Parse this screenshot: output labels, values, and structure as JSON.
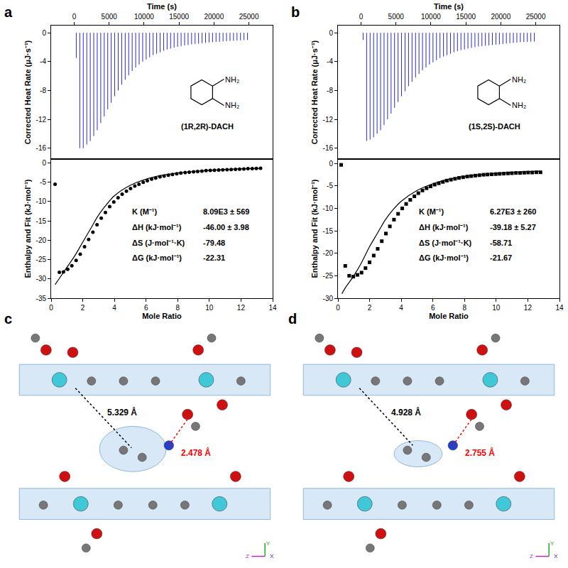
{
  "chart_data": [
    {
      "type": "impulse",
      "panel": "a",
      "x_label": "Time (s)",
      "y_label": "Corrected Heat Rate (μJ·s⁻¹)",
      "color": "#2a2ad4",
      "x": [
        300,
        800,
        1300,
        1800,
        2300,
        2800,
        3300,
        3800,
        4300,
        4800,
        5300,
        5800,
        6300,
        6800,
        7300,
        7800,
        8300,
        8800,
        9300,
        9800,
        10300,
        10800,
        11300,
        11800,
        12300,
        12800,
        13300,
        13800,
        14300,
        14800,
        15300,
        15800,
        16300,
        16800,
        17300,
        17800,
        18300,
        18800,
        19300,
        19800,
        20300,
        20800,
        21300,
        21800,
        22300,
        22800,
        23300,
        23800,
        24300,
        24800
      ],
      "values": [
        -3.5,
        -16,
        -16,
        -15.5,
        -15,
        -14.3,
        -13.5,
        -12.5,
        -11.6,
        -10.6,
        -9.7,
        -8.8,
        -8,
        -7.2,
        -6.5,
        -5.9,
        -5.3,
        -4.8,
        -4.4,
        -4,
        -3.7,
        -3.4,
        -3.1,
        -2.9,
        -2.7,
        -2.5,
        -2.3,
        -2.2,
        -2.05,
        -1.95,
        -1.85,
        -1.75,
        -1.7,
        -1.6,
        -1.55,
        -1.5,
        -1.45,
        -1.4,
        -1.35,
        -1.3,
        -1.27,
        -1.24,
        -1.2,
        -1.17,
        -1.14,
        -1.11,
        -1.08,
        -1.05,
        -1.02,
        -1.0
      ],
      "xlim": [
        -3300,
        28400
      ],
      "xticks": [
        0,
        5000,
        10000,
        15000,
        20000,
        25000
      ],
      "ylim": [
        -17.5,
        1
      ],
      "yticks": [
        -16,
        -12,
        -8,
        -4,
        0
      ],
      "annotations": [
        "(1R,2R)-DACH",
        "NH₂",
        "NH₂"
      ]
    },
    {
      "type": "scatter",
      "x_label": "Mole Ratio",
      "y_label": "Enthalpy and Fit (kJ·mol⁻¹)",
      "xlim": [
        0,
        14
      ],
      "xticks": [
        0,
        2,
        4,
        6,
        8,
        10,
        12,
        14
      ],
      "ylim": [
        -35,
        1
      ],
      "yticks": [
        -35,
        -30,
        -25,
        -20,
        -15,
        -10,
        -5,
        0
      ],
      "series": [
        {
          "type": "scatter",
          "marker": "circle",
          "color": "#000000",
          "x": [
            0.25,
            0.52,
            0.78,
            1.05,
            1.31,
            1.58,
            1.84,
            2.11,
            2.37,
            2.64,
            2.9,
            3.17,
            3.43,
            3.7,
            3.96,
            4.23,
            4.49,
            4.76,
            5.02,
            5.29,
            5.55,
            5.82,
            6.08,
            6.35,
            6.61,
            6.88,
            7.14,
            7.41,
            7.67,
            7.94,
            8.2,
            8.47,
            8.73,
            9.0,
            9.26,
            9.53,
            9.79,
            10.06,
            10.32,
            10.59,
            10.85,
            11.12,
            11.38,
            11.65,
            11.91,
            12.18,
            12.44,
            12.71,
            12.97,
            13.24
          ],
          "values": [
            -5.5,
            -28.3,
            -28.2,
            -27.5,
            -26.6,
            -25.2,
            -23.6,
            -21.7,
            -19.8,
            -17.9,
            -16,
            -14.3,
            -12.8,
            -11.3,
            -10.1,
            -9,
            -8.1,
            -7.3,
            -6.6,
            -6,
            -5.5,
            -5,
            -4.6,
            -4.2,
            -3.9,
            -3.6,
            -3.4,
            -3.2,
            -3,
            -2.8,
            -2.65,
            -2.5,
            -2.4,
            -2.3,
            -2.2,
            -2.1,
            -2.0,
            -1.95,
            -1.9,
            -1.85,
            -1.8,
            -1.75,
            -1.7,
            -1.65,
            -1.6,
            -1.55,
            -1.5,
            -1.5,
            -1.45,
            -1.4
          ]
        },
        {
          "type": "line",
          "color": "#000000",
          "x": [
            0.25,
            0.5,
            1,
            1.5,
            2,
            2.5,
            3,
            3.5,
            4,
            5,
            6,
            7,
            8,
            9,
            10,
            11,
            12,
            13.3
          ],
          "values": [
            -31.5,
            -30,
            -27,
            -24,
            -20.5,
            -17,
            -13.5,
            -10.8,
            -8.5,
            -5.8,
            -4.2,
            -3.2,
            -2.6,
            -2.2,
            -1.9,
            -1.7,
            -1.5,
            -1.4
          ]
        }
      ],
      "results": [
        {
          "label": "K (M⁻¹)",
          "value": "8.09E3 ± 569"
        },
        {
          "label": "ΔH (kJ·mol⁻¹)",
          "value": "-46.00 ± 3.98"
        },
        {
          "label": "ΔS (J·mol⁻¹·K)",
          "value": "-79.48"
        },
        {
          "label": "ΔG (kJ·mol⁻¹)",
          "value": "-22.31"
        }
      ]
    },
    {
      "type": "impulse",
      "panel": "b",
      "x_label": "Time (s)",
      "y_label": "Corrected Heat Rate (μJ·s⁻¹)",
      "color": "#2a2ad4",
      "x": [
        300,
        800,
        1300,
        1800,
        2300,
        2800,
        3300,
        3800,
        4300,
        4800,
        5300,
        5800,
        6300,
        6800,
        7300,
        7800,
        8300,
        8800,
        9300,
        9800,
        10300,
        10800,
        11300,
        11800,
        12300,
        12800,
        13300,
        13800,
        14300,
        14800,
        15300,
        15800,
        16300,
        16800,
        17300,
        17800,
        18300,
        18800,
        19300,
        19800,
        20300,
        20800,
        21300,
        21800,
        22300,
        22800,
        23300,
        23800,
        24300,
        24800
      ],
      "values": [
        -1,
        -15,
        -14.8,
        -14.5,
        -14,
        -13.5,
        -12.8,
        -12,
        -11.2,
        -10.4,
        -9.6,
        -8.8,
        -8.1,
        -7.4,
        -6.8,
        -6.2,
        -5.7,
        -5.2,
        -4.8,
        -4.4,
        -4.1,
        -3.8,
        -3.5,
        -3.3,
        -3.1,
        -2.9,
        -2.7,
        -2.55,
        -2.4,
        -2.3,
        -2.2,
        -2.1,
        -2.0,
        -1.9,
        -1.85,
        -1.8,
        -1.75,
        -1.7,
        -1.65,
        -1.6,
        -1.55,
        -1.5,
        -1.45,
        -1.4,
        -1.35,
        -1.3,
        -1.28,
        -1.26,
        -1.24,
        -1.22
      ],
      "xlim": [
        -3300,
        28400
      ],
      "xticks": [
        0,
        5000,
        10000,
        15000,
        20000,
        25000
      ],
      "ylim": [
        -17.5,
        1
      ],
      "yticks": [
        -16,
        -12,
        -8,
        -4,
        0
      ],
      "annotations": [
        "(1S,2S)-DACH",
        "NH₂",
        "NH₂"
      ]
    },
    {
      "type": "scatter",
      "x_label": "Mole Ratio",
      "y_label": "Enthalpy and Fit (kJ·mol⁻¹)",
      "xlim": [
        0,
        14
      ],
      "xticks": [
        0,
        2,
        4,
        6,
        8,
        10,
        12,
        14
      ],
      "ylim": [
        -30,
        1
      ],
      "yticks": [
        -30,
        -25,
        -20,
        -15,
        -10,
        -5,
        0
      ],
      "series": [
        {
          "type": "scatter",
          "marker": "square",
          "color": "#000000",
          "x": [
            0.2,
            0.46,
            0.71,
            0.97,
            1.23,
            1.49,
            1.74,
            2.0,
            2.26,
            2.51,
            2.77,
            3.03,
            3.28,
            3.54,
            3.8,
            4.06,
            4.31,
            4.57,
            4.83,
            5.08,
            5.34,
            5.6,
            5.85,
            6.11,
            6.37,
            6.63,
            6.88,
            7.14,
            7.4,
            7.65,
            7.91,
            8.17,
            8.42,
            8.68,
            8.94,
            9.2,
            9.45,
            9.71,
            9.97,
            10.22,
            10.48,
            10.74,
            10.99,
            11.25,
            11.51,
            11.77,
            12.02,
            12.28,
            12.54,
            12.8
          ],
          "values": [
            -0.3,
            -22.8,
            -25,
            -25.2,
            -24.8,
            -24.3,
            -23.3,
            -22,
            -20.5,
            -19,
            -17.3,
            -15.6,
            -14,
            -12.5,
            -11.2,
            -10,
            -9,
            -8.1,
            -7.3,
            -6.6,
            -6,
            -5.5,
            -5.1,
            -4.7,
            -4.4,
            -4.1,
            -3.8,
            -3.6,
            -3.4,
            -3.2,
            -3.05,
            -2.9,
            -2.8,
            -2.7,
            -2.6,
            -2.5,
            -2.45,
            -2.4,
            -2.35,
            -2.3,
            -2.25,
            -2.2,
            -2.15,
            -2.1,
            -2.1,
            -2.05,
            -2.0,
            -2.0,
            -1.95,
            -1.95
          ]
        },
        {
          "type": "line",
          "color": "#000000",
          "x": [
            0.25,
            0.5,
            1,
            1.5,
            2,
            2.5,
            3,
            3.5,
            4,
            5,
            6,
            7,
            8,
            9,
            10,
            11,
            12,
            12.8
          ],
          "values": [
            -29,
            -27.5,
            -25,
            -22,
            -18.5,
            -15.5,
            -12.5,
            -10.2,
            -8.4,
            -6,
            -4.5,
            -3.5,
            -2.9,
            -2.5,
            -2.2,
            -2,
            -1.8,
            -1.7
          ]
        }
      ],
      "results": [
        {
          "label": "K (M⁻¹)",
          "value": "6.27E3 ± 260"
        },
        {
          "label": "ΔH (kJ·mol⁻¹)",
          "value": "-39.18 ± 5.27"
        },
        {
          "label": "ΔS (J·mol⁻¹·K)",
          "value": "-58.71"
        },
        {
          "label": "ΔG (kJ·mol⁻¹)",
          "value": "-21.67"
        }
      ]
    }
  ],
  "structures": [
    {
      "panel": "c",
      "distances": [
        {
          "label": "5.329 Å",
          "color": "#000000"
        },
        {
          "label": "2.478 Å",
          "color": "#ff0000"
        }
      ],
      "axis_labels": [
        "Y",
        "Z",
        "X"
      ]
    },
    {
      "panel": "d",
      "distances": [
        {
          "label": "4.928 Å",
          "color": "#000000"
        },
        {
          "label": "2.755 Å",
          "color": "#ff0000"
        }
      ],
      "axis_labels": [
        "Y",
        "Z",
        "X"
      ]
    }
  ]
}
